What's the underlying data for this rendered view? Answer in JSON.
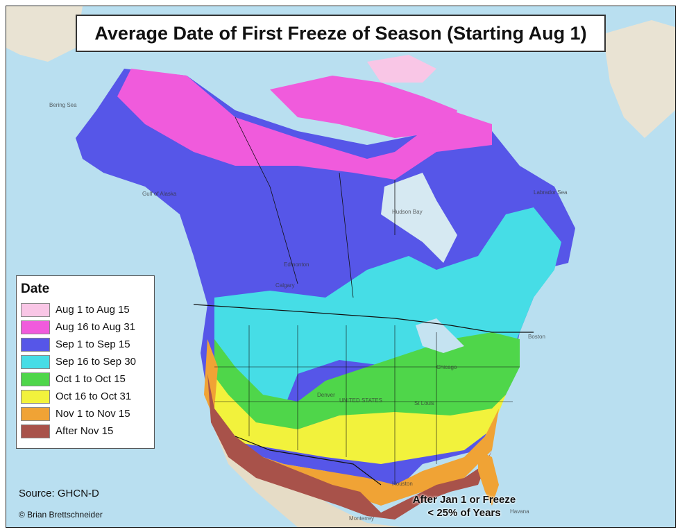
{
  "title": "Average Date of First Freeze of Season (Starting Aug 1)",
  "legend": {
    "title": "Date",
    "items": [
      {
        "label": "Aug 1 to Aug 15",
        "color": "#f9c6e6"
      },
      {
        "label": "Aug 16 to Aug 31",
        "color": "#f05bdc"
      },
      {
        "label": "Sep 1 to Sep 15",
        "color": "#5656e8"
      },
      {
        "label": "Sep 16 to Sep 30",
        "color": "#46dde6"
      },
      {
        "label": "Oct 1 to Oct 15",
        "color": "#4fd64a"
      },
      {
        "label": "Oct 16 to Oct 31",
        "color": "#f2f23c"
      },
      {
        "label": "Nov 1 to Nov 15",
        "color": "#f0a335"
      },
      {
        "label": "After Nov 15",
        "color": "#a8524a"
      }
    ]
  },
  "source": "Source: GHCN-D",
  "credit": "© Brian Brettschneider",
  "note": [
    "After Jan 1 or Freeze",
    "< 25% of Years"
  ],
  "places": [
    "Hudson Bay",
    "Edmonton",
    "Calgary",
    "Chicago",
    "Boston",
    "Denver",
    "UNITED STATES",
    "Houston",
    "Monterrey",
    "Havana",
    "St Louis",
    "Labrador Sea",
    "Gulf of Alaska",
    "Bering Sea"
  ],
  "colors": {
    "ocean": "#b9dff0",
    "land_unclassified": "#e6dcc6",
    "border": "#111111"
  }
}
